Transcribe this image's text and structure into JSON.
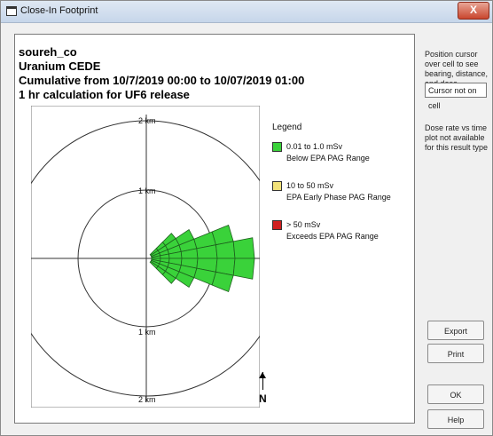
{
  "window": {
    "title": "Close-In Footprint",
    "close_label": "X"
  },
  "header": {
    "line1": "soureh_co",
    "line2": "Uranium CEDE",
    "line3": "Cumulative from 10/7/2019 00:00 to 10/07/2019 01:00",
    "line4": "1 hr calculation for UF6 release"
  },
  "plot": {
    "ring_labels": {
      "outer_top": "2 km",
      "inner_top": "1 km",
      "inner_bottom": "1 km",
      "outer_bottom": "2 km"
    },
    "north_label": "N",
    "colors": {
      "low": "#3ad23a",
      "mid": "#f2e27a",
      "high": "#d02020"
    }
  },
  "legend": {
    "title": "Legend",
    "items": [
      {
        "range": "0.01 to 1.0 mSv",
        "desc": "Below EPA PAG Range",
        "color": "#3ad23a"
      },
      {
        "range": "10 to 50 mSv",
        "desc": "EPA Early Phase PAG Range",
        "color": "#f2e27a"
      },
      {
        "range": "> 50 mSv",
        "desc": "Exceeds EPA PAG Range",
        "color": "#d02020"
      }
    ]
  },
  "sidebar": {
    "hint": "Position cursor over cell to see bearing, distance, and dose",
    "cursor_status": "Cursor not on cell",
    "dose_note": "Dose rate vs time plot not available for this result type"
  },
  "buttons": {
    "export": "Export",
    "print": "Print",
    "ok": "OK",
    "help": "Help"
  }
}
